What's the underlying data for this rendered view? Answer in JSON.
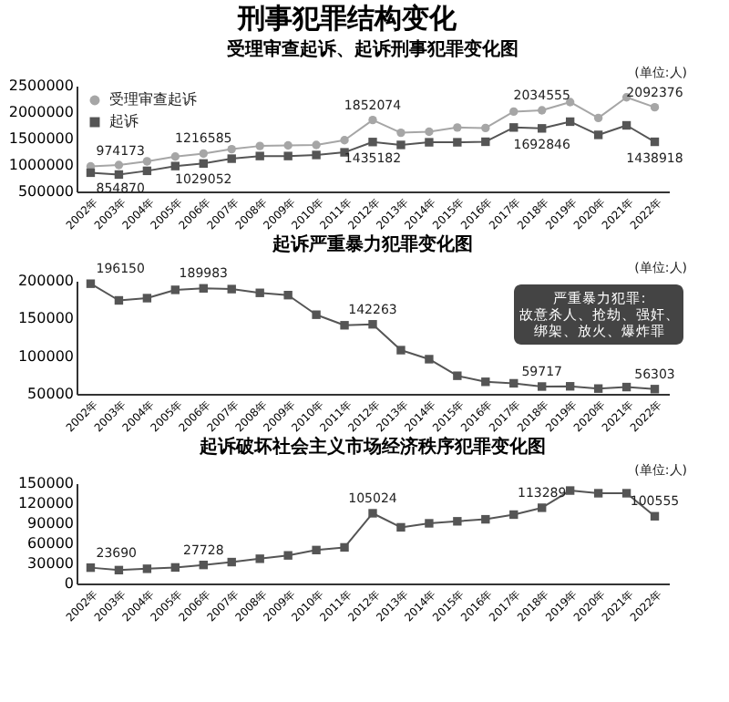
{
  "chart_data": [
    {
      "type": "other",
      "title": "刑事犯罪结构变化"
    },
    {
      "type": "line",
      "title": "受理审查起诉、起诉刑事犯罪变化图",
      "annotations": [
        "(单位:人)"
      ],
      "categories": [
        "2002年",
        "2003年",
        "2004年",
        "2005年",
        "2006年",
        "2007年",
        "2008年",
        "2009年",
        "2010年",
        "2011年",
        "2012年",
        "2013年",
        "2014年",
        "2015年",
        "2016年",
        "2017年",
        "2018年",
        "2019年",
        "2020年",
        "2021年",
        "2022年"
      ],
      "ylim": [
        500000,
        2500000
      ],
      "yticks": [
        500000,
        1000000,
        1500000,
        2000000,
        2500000
      ],
      "grid": false,
      "legend": "top left",
      "series": [
        {
          "name": "受理审查起诉",
          "color": "#a6a6a6",
          "marker": "circle",
          "values": [
            974173,
            1000000,
            1070000,
            1160000,
            1216585,
            1300000,
            1360000,
            1370000,
            1380000,
            1470000,
            1852074,
            1610000,
            1630000,
            1710000,
            1700000,
            2010000,
            2034555,
            2190000,
            1890000,
            2280000,
            2092376
          ],
          "value_labels": [
            "974173",
            null,
            null,
            null,
            "1216585",
            null,
            null,
            null,
            null,
            null,
            "1852074",
            null,
            null,
            null,
            null,
            null,
            "2034555",
            null,
            null,
            null,
            "2092376"
          ]
        },
        {
          "name": "起诉",
          "color": "#555555",
          "marker": "square",
          "values": [
            854870,
            820000,
            890000,
            980000,
            1029052,
            1120000,
            1170000,
            1170000,
            1190000,
            1240000,
            1435182,
            1380000,
            1430000,
            1430000,
            1440000,
            1710000,
            1692846,
            1820000,
            1570000,
            1750000,
            1438918
          ],
          "value_labels": [
            "854870",
            null,
            null,
            null,
            "1029052",
            null,
            null,
            null,
            null,
            null,
            "1435182",
            null,
            null,
            null,
            null,
            null,
            "1692846",
            null,
            null,
            null,
            "1438918"
          ]
        }
      ]
    },
    {
      "type": "line",
      "title": "起诉严重暴力犯罪变化图",
      "annotations": [
        "(单位:人)",
        "严重暴力犯罪:故意杀人、抢劫、强奸、绑架、放火、爆炸罪"
      ],
      "categories": [
        "2002年",
        "2003年",
        "2004年",
        "2005年",
        "2006年",
        "2007年",
        "2008年",
        "2009年",
        "2010年",
        "2011年",
        "2012年",
        "2013年",
        "2014年",
        "2015年",
        "2016年",
        "2017年",
        "2018年",
        "2019年",
        "2020年",
        "2021年",
        "2022年"
      ],
      "ylim": [
        50000,
        200000
      ],
      "yticks": [
        50000,
        100000,
        150000,
        200000
      ],
      "grid": false,
      "series": [
        {
          "color": "#555555",
          "marker": "square",
          "values": [
            196150,
            174000,
            177000,
            188000,
            189983,
            189000,
            184000,
            181000,
            155000,
            141000,
            142263,
            108000,
            96000,
            74000,
            66000,
            64000,
            59717,
            60000,
            57000,
            59000,
            56303
          ],
          "value_labels": [
            "196150",
            null,
            null,
            null,
            "189983",
            null,
            null,
            null,
            null,
            null,
            "142263",
            null,
            null,
            null,
            null,
            null,
            "59717",
            null,
            null,
            null,
            "56303"
          ]
        }
      ]
    },
    {
      "type": "line",
      "title": "起诉破坏社会主义市场经济秩序犯罪变化图",
      "annotations": [
        "(单位:人)"
      ],
      "categories": [
        "2002年",
        "2003年",
        "2004年",
        "2005年",
        "2006年",
        "2007年",
        "2008年",
        "2009年",
        "2010年",
        "2011年",
        "2012年",
        "2013年",
        "2014年",
        "2015年",
        "2016年",
        "2017年",
        "2018年",
        "2019年",
        "2020年",
        "2021年",
        "2022年"
      ],
      "ylim": [
        0,
        150000
      ],
      "yticks": [
        0,
        30000,
        60000,
        90000,
        120000,
        150000
      ],
      "grid": false,
      "series": [
        {
          "color": "#555555",
          "marker": "square",
          "values": [
            23690,
            20000,
            22000,
            24000,
            27728,
            32000,
            37000,
            42000,
            50000,
            54000,
            105024,
            84000,
            90000,
            93000,
            96000,
            103000,
            113289,
            139000,
            135000,
            135000,
            100555
          ],
          "value_labels": [
            "23690",
            null,
            null,
            null,
            "27728",
            null,
            null,
            null,
            null,
            null,
            "105024",
            null,
            null,
            null,
            null,
            null,
            "113289",
            null,
            null,
            null,
            "100555"
          ]
        }
      ]
    }
  ]
}
